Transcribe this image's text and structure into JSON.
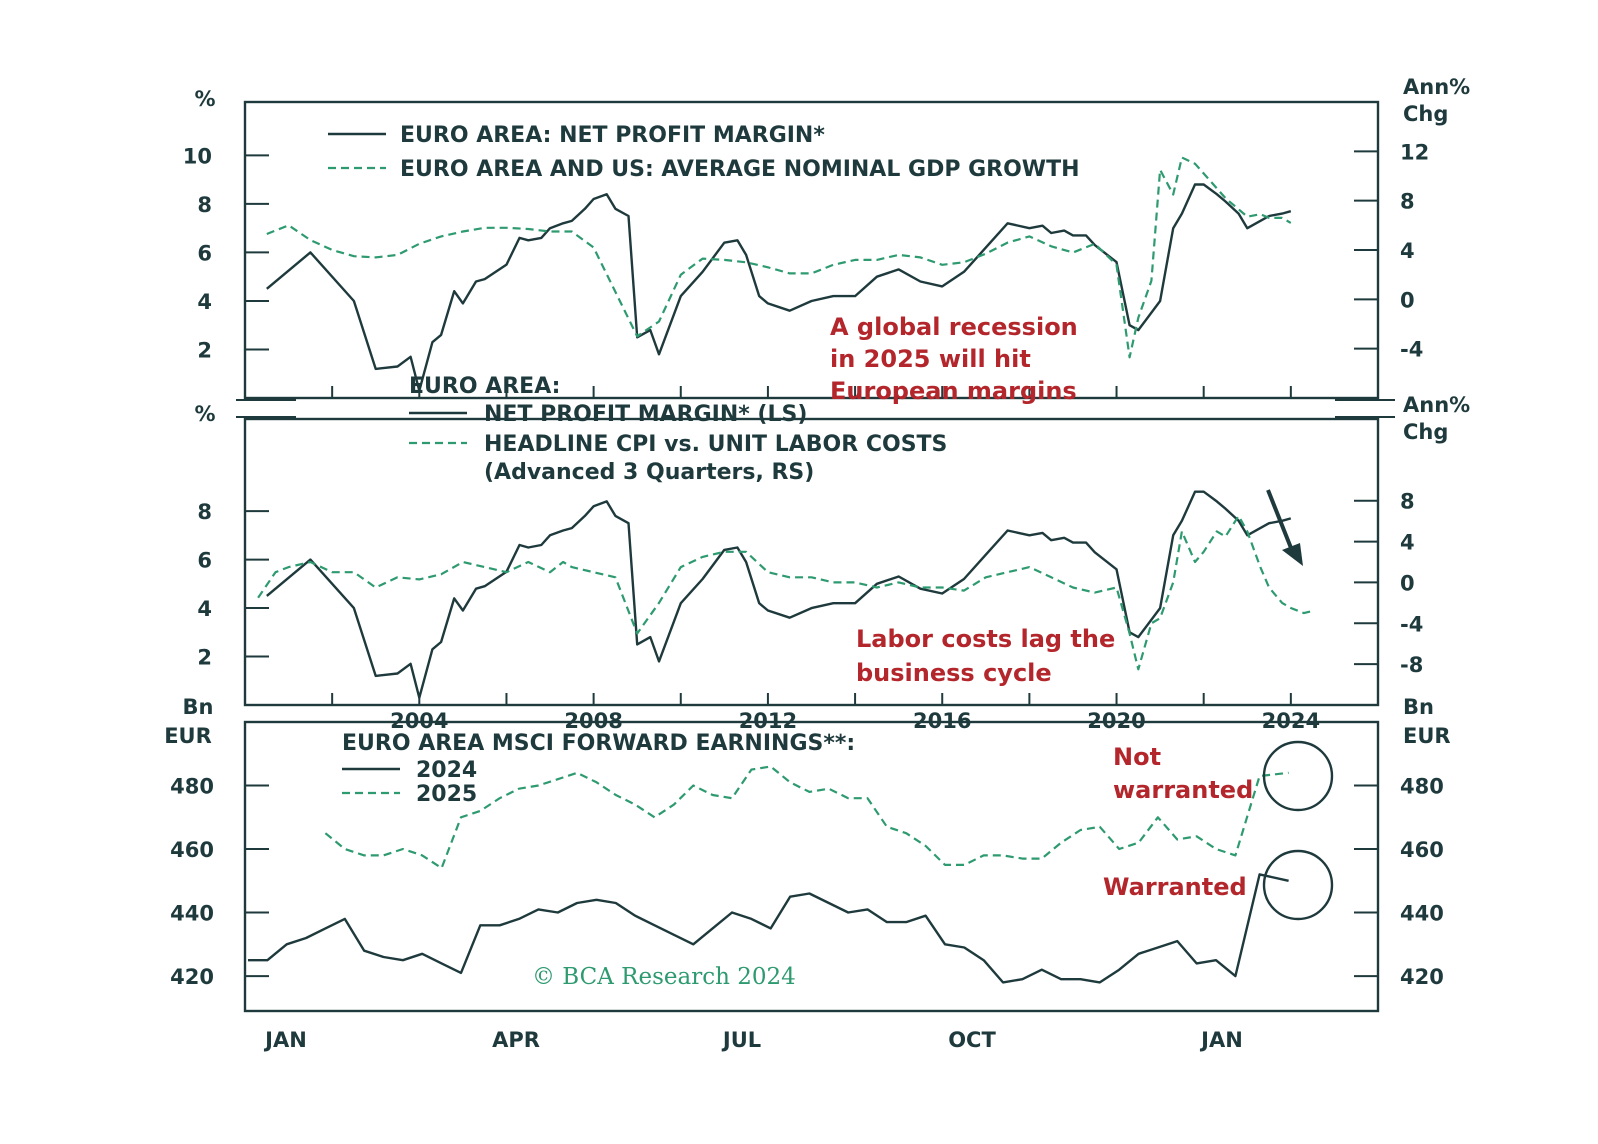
{
  "colors": {
    "frame": "#1f3a3d",
    "solid_series": "#1f3a3d",
    "dashed_series": "#2e9a70",
    "annotation": "#b3262b"
  },
  "chart_data": [
    {
      "type": "line",
      "panel": "top",
      "left_unit": "%",
      "right_unit_line1": "Ann%",
      "right_unit_line2": "Chg",
      "left_ticks": [
        2,
        4,
        6,
        8,
        10
      ],
      "right_ticks": [
        -4,
        0,
        4,
        8,
        12
      ],
      "xlim": [
        2000,
        2026
      ],
      "left_ylim": [
        0,
        12.2
      ],
      "right_ylim": [
        -8,
        16
      ],
      "legend": [
        "EURO AREA: NET PROFIT MARGIN*",
        "EURO AREA AND US: AVERAGE NOMINAL GDP GROWTH"
      ],
      "annotation": [
        "A global recession",
        "in 2025 will hit",
        "European margins"
      ],
      "series": [
        {
          "name": "EURO AREA: NET PROFIT MARGIN*",
          "axis": "left",
          "x": [
            2000.5,
            2001.5,
            2002.5,
            2003.0,
            2003.5,
            2003.8,
            2004.0,
            2004.3,
            2004.5,
            2004.8,
            2005.0,
            2005.3,
            2005.5,
            2006.0,
            2006.3,
            2006.5,
            2006.8,
            2007.0,
            2007.3,
            2007.5,
            2007.8,
            2008.0,
            2008.3,
            2008.5,
            2008.8,
            2009.0,
            2009.3,
            2009.5,
            2010.0,
            2010.5,
            2011.0,
            2011.3,
            2011.5,
            2011.8,
            2012.0,
            2012.5,
            2013.0,
            2013.5,
            2014.0,
            2014.5,
            2015.0,
            2015.5,
            2016.0,
            2016.5,
            2017.0,
            2017.5,
            2018.0,
            2018.3,
            2018.5,
            2018.8,
            2019.0,
            2019.3,
            2019.5,
            2020.0,
            2020.3,
            2020.5,
            2021.0,
            2021.3,
            2021.5,
            2021.8,
            2022.0,
            2022.3,
            2022.5,
            2022.8,
            2023.0,
            2023.3,
            2023.5,
            2023.8,
            2024.0
          ],
          "y": [
            4.5,
            6.0,
            4.0,
            1.2,
            1.3,
            1.7,
            0.3,
            2.3,
            2.6,
            4.4,
            3.9,
            4.8,
            4.9,
            5.5,
            6.6,
            6.5,
            6.6,
            7.0,
            7.2,
            7.3,
            7.8,
            8.2,
            8.4,
            7.8,
            7.5,
            2.5,
            2.8,
            1.8,
            4.2,
            5.2,
            6.4,
            6.5,
            5.9,
            4.2,
            3.9,
            3.6,
            4.0,
            4.2,
            4.2,
            5.0,
            5.3,
            4.8,
            4.6,
            5.2,
            6.2,
            7.2,
            7.0,
            7.1,
            6.8,
            6.9,
            6.7,
            6.7,
            6.3,
            5.6,
            3.0,
            2.8,
            4.0,
            7.0,
            7.6,
            8.8,
            8.8,
            8.4,
            8.1,
            7.6,
            7.0,
            7.3,
            7.5,
            7.6,
            7.7
          ]
        },
        {
          "name": "EURO AREA AND US: AVERAGE NOMINAL GDP GROWTH",
          "axis": "right",
          "x": [
            2000.5,
            2001.0,
            2001.5,
            2002.0,
            2002.5,
            2003.0,
            2003.5,
            2004.0,
            2004.5,
            2005.0,
            2005.5,
            2006.0,
            2006.5,
            2007.0,
            2007.5,
            2008.0,
            2008.5,
            2009.0,
            2009.5,
            2010.0,
            2010.5,
            2011.0,
            2011.5,
            2012.0,
            2012.5,
            2013.0,
            2013.5,
            2014.0,
            2014.5,
            2015.0,
            2015.5,
            2016.0,
            2016.5,
            2017.0,
            2017.5,
            2018.0,
            2018.5,
            2019.0,
            2019.5,
            2020.0,
            2020.3,
            2020.5,
            2020.8,
            2021.0,
            2021.3,
            2021.5,
            2021.8,
            2022.0,
            2022.3,
            2022.5,
            2022.8,
            2023.0,
            2023.3,
            2023.5,
            2023.8,
            2024.0
          ],
          "y": [
            5.3,
            6.0,
            4.8,
            4.0,
            3.5,
            3.4,
            3.6,
            4.5,
            5.1,
            5.5,
            5.8,
            5.8,
            5.7,
            5.5,
            5.5,
            4.2,
            0.6,
            -3.0,
            -1.8,
            2.0,
            3.3,
            3.2,
            3.0,
            2.6,
            2.1,
            2.1,
            2.8,
            3.2,
            3.2,
            3.6,
            3.4,
            2.8,
            3.0,
            3.7,
            4.6,
            5.1,
            4.3,
            3.8,
            4.5,
            2.8,
            -4.7,
            -1.5,
            1.5,
            10.5,
            8.5,
            11.5,
            11.0,
            10.2,
            9.0,
            8.2,
            7.3,
            6.7,
            6.9,
            6.6,
            6.6,
            6.2
          ]
        }
      ]
    },
    {
      "type": "line",
      "panel": "middle",
      "left_unit": "%",
      "right_unit_line1": "Ann%",
      "right_unit_line2": "Chg",
      "left_ticks": [
        2,
        4,
        6,
        8
      ],
      "right_ticks": [
        -8,
        -4,
        0,
        4,
        8
      ],
      "x_ticks": [
        2004,
        2008,
        2012,
        2016,
        2020,
        2024
      ],
      "xlim": [
        2000,
        2026
      ],
      "left_ylim": [
        0,
        11.8
      ],
      "right_ylim": [
        -12,
        16
      ],
      "legend_title": "EURO AREA:",
      "legend": [
        "NET PROFIT MARGIN* (LS)",
        "HEADLINE CPI vs. UNIT LABOR COSTS",
        "(Advanced 3 Quarters, RS)"
      ],
      "annotation": [
        "Labor costs lag the",
        "business cycle"
      ],
      "series": [
        {
          "name": "NET PROFIT MARGIN* (LS)",
          "axis": "left",
          "x": [
            2000.5,
            2001.5,
            2002.5,
            2003.0,
            2003.5,
            2003.8,
            2004.0,
            2004.3,
            2004.5,
            2004.8,
            2005.0,
            2005.3,
            2005.5,
            2006.0,
            2006.3,
            2006.5,
            2006.8,
            2007.0,
            2007.3,
            2007.5,
            2007.8,
            2008.0,
            2008.3,
            2008.5,
            2008.8,
            2009.0,
            2009.3,
            2009.5,
            2010.0,
            2010.5,
            2011.0,
            2011.3,
            2011.5,
            2011.8,
            2012.0,
            2012.5,
            2013.0,
            2013.5,
            2014.0,
            2014.5,
            2015.0,
            2015.5,
            2016.0,
            2016.5,
            2017.0,
            2017.5,
            2018.0,
            2018.3,
            2018.5,
            2018.8,
            2019.0,
            2019.3,
            2019.5,
            2020.0,
            2020.3,
            2020.5,
            2021.0,
            2021.3,
            2021.5,
            2021.8,
            2022.0,
            2022.3,
            2022.5,
            2022.8,
            2023.0,
            2023.3,
            2023.5,
            2023.8,
            2024.0
          ],
          "y": [
            4.5,
            6.0,
            4.0,
            1.2,
            1.3,
            1.7,
            0.3,
            2.3,
            2.6,
            4.4,
            3.9,
            4.8,
            4.9,
            5.5,
            6.6,
            6.5,
            6.6,
            7.0,
            7.2,
            7.3,
            7.8,
            8.2,
            8.4,
            7.8,
            7.5,
            2.5,
            2.8,
            1.8,
            4.2,
            5.2,
            6.4,
            6.5,
            5.9,
            4.2,
            3.9,
            3.6,
            4.0,
            4.2,
            4.2,
            5.0,
            5.3,
            4.8,
            4.6,
            5.2,
            6.2,
            7.2,
            7.0,
            7.1,
            6.8,
            6.9,
            6.7,
            6.7,
            6.3,
            5.6,
            3.0,
            2.8,
            4.0,
            7.0,
            7.6,
            8.8,
            8.8,
            8.4,
            8.1,
            7.6,
            7.0,
            7.3,
            7.5,
            7.6,
            7.7
          ]
        },
        {
          "name": "HEADLINE CPI vs. UNIT LABOR COSTS",
          "axis": "right",
          "x": [
            2000.3,
            2000.7,
            2001.0,
            2001.5,
            2002.0,
            2002.5,
            2003.0,
            2003.5,
            2004.0,
            2004.5,
            2005.0,
            2005.5,
            2006.0,
            2006.5,
            2007.0,
            2007.3,
            2007.5,
            2008.0,
            2008.5,
            2009.0,
            2009.5,
            2010.0,
            2010.5,
            2011.0,
            2011.5,
            2012.0,
            2012.5,
            2013.0,
            2013.5,
            2014.0,
            2014.5,
            2015.0,
            2015.5,
            2016.0,
            2016.5,
            2017.0,
            2017.5,
            2018.0,
            2018.5,
            2019.0,
            2019.5,
            2020.0,
            2020.3,
            2020.5,
            2020.8,
            2021.0,
            2021.3,
            2021.5,
            2021.8,
            2022.0,
            2022.3,
            2022.5,
            2022.8,
            2023.0,
            2023.3,
            2023.5,
            2023.8,
            2024.0,
            2024.3,
            2024.5
          ],
          "y": [
            -1.5,
            1.0,
            1.5,
            2.0,
            1.0,
            1.0,
            -0.5,
            0.5,
            0.3,
            0.8,
            2.0,
            1.5,
            1.0,
            2.0,
            1.0,
            2.0,
            1.5,
            1.0,
            0.5,
            -5.0,
            -2.0,
            1.5,
            2.5,
            3.0,
            3.0,
            1.0,
            0.5,
            0.5,
            0.0,
            0.0,
            -0.5,
            0.0,
            -0.5,
            -0.5,
            -0.8,
            0.5,
            1.0,
            1.5,
            0.5,
            -0.5,
            -1.0,
            -0.5,
            -5.0,
            -8.5,
            -4.0,
            -3.5,
            0.0,
            5.0,
            2.0,
            3.0,
            5.0,
            4.5,
            6.5,
            5.0,
            1.5,
            -0.5,
            -2.0,
            -2.5,
            -3.0,
            -2.8
          ]
        }
      ]
    },
    {
      "type": "line",
      "panel": "bottom",
      "left_unit_line1": "Bn",
      "left_unit_line2": "EUR",
      "right_unit_line1": "Bn",
      "right_unit_line2": "EUR",
      "left_ticks": [
        420,
        440,
        460,
        480
      ],
      "right_ticks": [
        420,
        440,
        460,
        480
      ],
      "x_ticks": [
        "JAN",
        "APR",
        "JUL",
        "OCT",
        "JAN"
      ],
      "ylim": [
        409,
        500
      ],
      "legend_title": "EURO AREA MSCI FORWARD EARNINGS**:",
      "legend": [
        "2024",
        "2025"
      ],
      "annotations": [
        "Not",
        "warranted",
        "Warranted"
      ],
      "copyright": "© BCA Research 2024",
      "series": [
        {
          "name": "2024",
          "x": [
            0,
            2,
            4,
            6,
            8,
            10,
            12,
            14,
            16,
            18,
            20,
            22,
            24,
            26,
            28,
            30,
            32,
            34,
            36,
            38,
            40,
            42,
            44,
            46,
            48,
            50,
            52,
            54,
            56,
            58,
            60,
            62,
            64,
            66,
            68,
            70,
            72,
            74,
            76,
            78,
            80,
            82,
            84,
            86,
            88,
            90,
            92,
            94,
            96,
            98,
            100
          ],
          "y": [
            425,
            425,
            430,
            432,
            435,
            438,
            428,
            426,
            425,
            427,
            424,
            421,
            436,
            436,
            438,
            441,
            440,
            443,
            444,
            443,
            439,
            436,
            433,
            430,
            435,
            440,
            438,
            435,
            445,
            446,
            443,
            440,
            441,
            437,
            437,
            439,
            430,
            429,
            425,
            418,
            419,
            422,
            419,
            419,
            418,
            422,
            427,
            429,
            431,
            424,
            425
          ]
        },
        {
          "name": "2025",
          "x": [
            8,
            10,
            12,
            14,
            16,
            18,
            20,
            22,
            24,
            26,
            28,
            30,
            32,
            34,
            36,
            38,
            40,
            42,
            44,
            46,
            48,
            50,
            52,
            54,
            56,
            58,
            60,
            62,
            64,
            66,
            68,
            70,
            72,
            74,
            76,
            78,
            80,
            82,
            84,
            86,
            88,
            90,
            92,
            94,
            96,
            98,
            100
          ],
          "y": [
            465,
            460,
            458,
            458,
            460,
            458,
            454,
            470,
            472,
            476,
            479,
            480,
            482,
            484,
            481,
            477,
            474,
            470,
            474,
            480,
            477,
            476,
            485,
            486,
            481,
            478,
            479,
            476,
            476,
            467,
            465,
            461,
            455,
            455,
            458,
            458,
            457,
            457,
            462,
            466,
            467,
            460,
            462,
            470,
            463,
            464,
            460
          ]
        }
      ]
    }
  ]
}
